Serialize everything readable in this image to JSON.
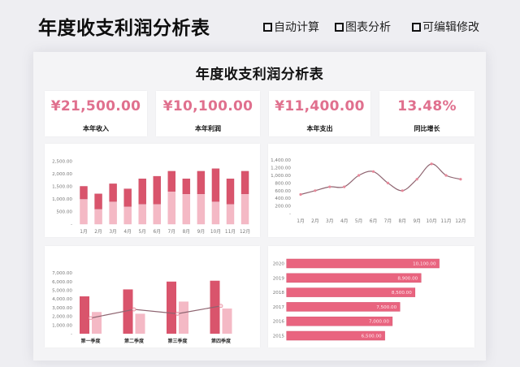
{
  "header": {
    "title": "年度收支利润分析表",
    "checkbox_icon": "square-checkbox-icon",
    "features": [
      {
        "label": "自动计算"
      },
      {
        "label": "图表分析"
      },
      {
        "label": "可编辑修改"
      }
    ]
  },
  "dashboard": {
    "title": "年度收支利润分析表",
    "kpis": [
      {
        "value": "¥21,500.00",
        "label": "本年收入"
      },
      {
        "value": "¥10,100.00",
        "label": "本年利润"
      },
      {
        "value": "¥11,400.00",
        "label": "本年支出"
      },
      {
        "value": "13.48%",
        "label": "同比增长"
      }
    ]
  },
  "colors": {
    "accent_dark": "#d9546c",
    "accent_light": "#f4b9c5",
    "line": "#8e6470",
    "marker": "#e7889a",
    "hbar": "#e9647f",
    "kpi_value": "#e0708e",
    "axis_text": "#777777"
  },
  "chart_data": [
    {
      "id": "monthly-stacked",
      "type": "bar",
      "stacked": true,
      "title": "",
      "categories": [
        "1月",
        "2月",
        "3月",
        "4月",
        "5月",
        "6月",
        "7月",
        "8月",
        "9月",
        "10月",
        "11月",
        "12月"
      ],
      "series": [
        {
          "color": "#f4b9c5",
          "values": [
            1000,
            600,
            900,
            700,
            800,
            800,
            1300,
            1200,
            1200,
            900,
            800,
            1200
          ]
        },
        {
          "color": "#d9546c",
          "values": [
            500,
            600,
            700,
            700,
            1000,
            1100,
            800,
            600,
            900,
            1300,
            1000,
            900
          ]
        }
      ],
      "y_ticks": [
        {
          "value": 0,
          "label": "-"
        },
        {
          "value": 500,
          "label": "500.00"
        },
        {
          "value": 1000,
          "label": "1,000.00"
        },
        {
          "value": 1500,
          "label": "1,500.00"
        },
        {
          "value": 2000,
          "label": "2,000.00"
        },
        {
          "value": 2500,
          "label": "2,500.00"
        }
      ],
      "ylim": [
        0,
        2500
      ],
      "grid": false,
      "legend": "none"
    },
    {
      "id": "monthly-line",
      "type": "line",
      "title": "",
      "categories": [
        "1月",
        "2月",
        "3月",
        "4月",
        "5月",
        "6月",
        "7月",
        "8月",
        "9月",
        "10月",
        "11月",
        "12月"
      ],
      "values": [
        500,
        600,
        700,
        700,
        1000,
        1100,
        800,
        600,
        900,
        1300,
        1000,
        900
      ],
      "y_ticks": [
        {
          "value": 0,
          "label": "-"
        },
        {
          "value": 200,
          "label": "200.00"
        },
        {
          "value": 400,
          "label": "400.00"
        },
        {
          "value": 600,
          "label": "600.00"
        },
        {
          "value": 800,
          "label": "800.00"
        },
        {
          "value": 1000,
          "label": "1,000.00"
        },
        {
          "value": 1200,
          "label": "1,200.00"
        },
        {
          "value": 1400,
          "label": "1,400.00"
        }
      ],
      "ylim": [
        0,
        1400
      ],
      "smooth": true,
      "grid": false,
      "legend": "none"
    },
    {
      "id": "quarterly-combo",
      "type": "bar",
      "title": "",
      "categories": [
        "第一季度",
        "第二季度",
        "第三季度",
        "第四季度"
      ],
      "series": [
        {
          "kind": "bar",
          "color": "#d9546c",
          "values": [
            4300,
            5100,
            6000,
            6100
          ]
        },
        {
          "kind": "bar",
          "color": "#f4b9c5",
          "values": [
            2500,
            2300,
            3700,
            2900
          ]
        },
        {
          "kind": "line",
          "color": "#8e6470",
          "values": [
            1800,
            2800,
            2300,
            3200
          ]
        }
      ],
      "y_ticks": [
        {
          "value": 0,
          "label": "-"
        },
        {
          "value": 1000,
          "label": "1,000.00"
        },
        {
          "value": 2000,
          "label": "2,000.00"
        },
        {
          "value": 3000,
          "label": "3,000.00"
        },
        {
          "value": 4000,
          "label": "4,000.00"
        },
        {
          "value": 5000,
          "label": "5,000.00"
        },
        {
          "value": 6000,
          "label": "6,000.00"
        },
        {
          "value": 7000,
          "label": "7,000.00"
        }
      ],
      "ylim": [
        0,
        7000
      ],
      "grid": false,
      "legend": "none"
    },
    {
      "id": "yearly-hbar",
      "type": "bar",
      "orientation": "horizontal",
      "title": "",
      "categories": [
        "2020",
        "2019",
        "2018",
        "2017",
        "2016",
        "2015"
      ],
      "values": [
        10100,
        8900,
        8500,
        7500,
        7000,
        6500
      ],
      "data_labels": [
        "10,100.00",
        "8,900.00",
        "8,500.00",
        "7,500.00",
        "7,000.00",
        "6,500.00"
      ],
      "color": "#e9647f",
      "grid": false,
      "legend": "none"
    }
  ]
}
